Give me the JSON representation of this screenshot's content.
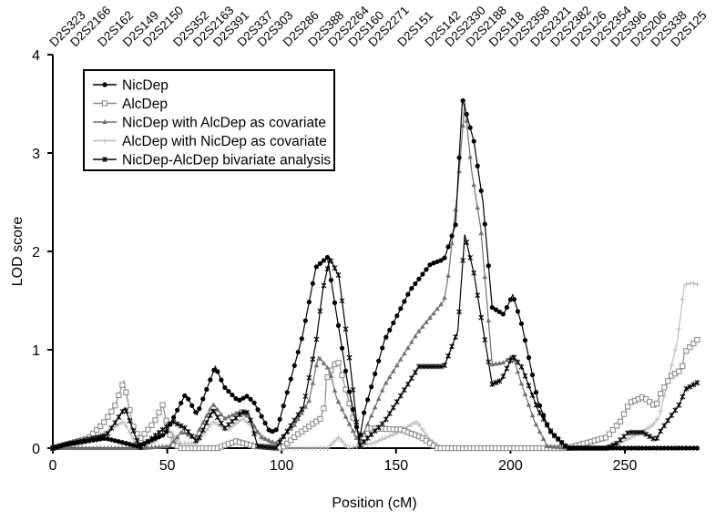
{
  "chart_data": {
    "type": "line",
    "xlabel": "Position (cM)",
    "ylabel": "LOD score",
    "xlim": [
      0,
      290
    ],
    "ylim": [
      0,
      4
    ],
    "x_ticks": [
      "0",
      "50",
      "100",
      "150",
      "200",
      "250"
    ],
    "y_ticks": [
      "0",
      "1",
      "2",
      "3",
      "4"
    ],
    "grid": false,
    "legend_position": "top-left",
    "markers": [
      {
        "name": "D2S323",
        "pos": 0
      },
      {
        "name": "D2S2166",
        "pos": 9
      },
      {
        "name": "D2S162",
        "pos": 21
      },
      {
        "name": "D2S149",
        "pos": 32
      },
      {
        "name": "D2S2150",
        "pos": 40
      },
      {
        "name": "D2S352",
        "pos": 54
      },
      {
        "name": "D2S2163",
        "pos": 59
      },
      {
        "name": "D2S391",
        "pos": 71
      },
      {
        "name": "D2S337",
        "pos": 82
      },
      {
        "name": "D2S303",
        "pos": 90
      },
      {
        "name": "D2S286",
        "pos": 102
      },
      {
        "name": "D2S388",
        "pos": 113
      },
      {
        "name": "D2S2264",
        "pos": 119
      },
      {
        "name": "D2S160",
        "pos": 130
      },
      {
        "name": "D2S2271",
        "pos": 136
      },
      {
        "name": "D2S151",
        "pos": 152
      },
      {
        "name": "D2S142",
        "pos": 164
      },
      {
        "name": "D2S2330",
        "pos": 172
      },
      {
        "name": "D2S2188",
        "pos": 182
      },
      {
        "name": "D2S118",
        "pos": 192
      },
      {
        "name": "D2S2358",
        "pos": 199
      },
      {
        "name": "D2S2321",
        "pos": 211
      },
      {
        "name": "D2S2382",
        "pos": 222
      },
      {
        "name": "D2S126",
        "pos": 230
      },
      {
        "name": "D2S2354",
        "pos": 238
      },
      {
        "name": "D2S396",
        "pos": 255
      },
      {
        "name": "D2S206",
        "pos": 266
      },
      {
        "name": "D2S338",
        "pos": 276
      },
      {
        "name": "D2S125",
        "pos": 284
      }
    ],
    "series": [
      {
        "name": "NicDep",
        "color": "#000000",
        "marker": "circle",
        "points": [
          [
            0,
            0
          ],
          [
            6,
            0.04
          ],
          [
            23,
            0.1
          ],
          [
            37,
            0.02
          ],
          [
            49,
            0.14
          ],
          [
            58,
            0.55
          ],
          [
            63,
            0.34
          ],
          [
            71,
            0.83
          ],
          [
            75,
            0.62
          ],
          [
            81,
            0.48
          ],
          [
            85,
            0.53
          ],
          [
            88,
            0.46
          ],
          [
            95,
            0.16
          ],
          [
            98,
            0.19
          ],
          [
            109,
            1.13
          ],
          [
            115,
            1.84
          ],
          [
            120,
            1.94
          ],
          [
            129,
            0.64
          ],
          [
            134,
            0.08
          ],
          [
            136,
            0.36
          ],
          [
            145,
            1.1
          ],
          [
            156,
            1.6
          ],
          [
            165,
            1.87
          ],
          [
            171,
            1.92
          ],
          [
            176,
            2.27
          ],
          [
            179,
            3.55
          ],
          [
            184,
            3.12
          ],
          [
            188,
            2.49
          ],
          [
            192,
            1.43
          ],
          [
            197,
            1.36
          ],
          [
            201,
            1.56
          ],
          [
            205,
            1.25
          ],
          [
            212,
            0.48
          ],
          [
            217,
            0.18
          ],
          [
            225,
            0
          ],
          [
            282,
            0
          ]
        ]
      },
      {
        "name": "AlcDep",
        "color": "#8c8c8c",
        "marker": "square",
        "points": [
          [
            0,
            0
          ],
          [
            15.5,
            0.1
          ],
          [
            22,
            0.25
          ],
          [
            27,
            0.42
          ],
          [
            31,
            0.68
          ],
          [
            35,
            0.23
          ],
          [
            38,
            0.09
          ],
          [
            44.5,
            0.27
          ],
          [
            48,
            0.44
          ],
          [
            51,
            0.14
          ],
          [
            55,
            0
          ],
          [
            72,
            0
          ],
          [
            80,
            0.07
          ],
          [
            88,
            0.02
          ],
          [
            100,
            0
          ],
          [
            107,
            0.14
          ],
          [
            117,
            0.3
          ],
          [
            119,
            0.45
          ],
          [
            119.5,
            0.7
          ],
          [
            123,
            0.85
          ],
          [
            125,
            0.87
          ],
          [
            127.5,
            0.64
          ],
          [
            131,
            0.33
          ],
          [
            134,
            0.02
          ],
          [
            139,
            0.2
          ],
          [
            152,
            0.19
          ],
          [
            161,
            0.11
          ],
          [
            168,
            0
          ],
          [
            225,
            0
          ],
          [
            228,
            0.02
          ],
          [
            242,
            0.11
          ],
          [
            248,
            0.27
          ],
          [
            252,
            0.46
          ],
          [
            258,
            0.52
          ],
          [
            263.5,
            0.42
          ],
          [
            265.5,
            0.55
          ],
          [
            270,
            0.73
          ],
          [
            275,
            0.8
          ],
          [
            276,
            0.97
          ],
          [
            282,
            1.11
          ]
        ]
      },
      {
        "name": "NicDep with AlcDep as covariate",
        "color": "#707070",
        "marker": "triangle",
        "points": [
          [
            0,
            0
          ],
          [
            40,
            0
          ],
          [
            51,
            0.02
          ],
          [
            56.5,
            0.17
          ],
          [
            62,
            0.1
          ],
          [
            70,
            0.45
          ],
          [
            75,
            0.3
          ],
          [
            81.5,
            0.37
          ],
          [
            85.5,
            0.32
          ],
          [
            91,
            0.11
          ],
          [
            97.5,
            0.05
          ],
          [
            105.5,
            0.23
          ],
          [
            112,
            0.48
          ],
          [
            116,
            0.93
          ],
          [
            121,
            0.79
          ],
          [
            124,
            0.51
          ],
          [
            129,
            0.27
          ],
          [
            134,
            0.05
          ],
          [
            145,
            0.64
          ],
          [
            159,
            1.16
          ],
          [
            171,
            1.5
          ],
          [
            173,
            1.78
          ],
          [
            177,
            2.64
          ],
          [
            180,
            3.51
          ],
          [
            183,
            2.82
          ],
          [
            187,
            2.24
          ],
          [
            192,
            0.85
          ],
          [
            197,
            0.87
          ],
          [
            201,
            0.94
          ],
          [
            205,
            0.64
          ],
          [
            210.5,
            0.27
          ],
          [
            216,
            0.02
          ],
          [
            225,
            0
          ],
          [
            282,
            0
          ]
        ]
      },
      {
        "name": "AlcDep with NicDep as covariate",
        "color": "#bdbdbd",
        "marker": "plus",
        "points": [
          [
            0,
            0
          ],
          [
            10,
            0.02
          ],
          [
            17,
            0.08
          ],
          [
            31,
            0.27
          ],
          [
            37,
            0.02
          ],
          [
            44,
            0.05
          ],
          [
            50,
            0.2
          ],
          [
            56,
            0.05
          ],
          [
            63,
            0.05
          ],
          [
            70,
            0.27
          ],
          [
            76,
            0.18
          ],
          [
            83,
            0.3
          ],
          [
            88,
            0.2
          ],
          [
            95,
            0.05
          ],
          [
            100,
            0
          ],
          [
            120,
            0
          ],
          [
            125,
            0.11
          ],
          [
            129,
            0
          ],
          [
            140,
            0.05
          ],
          [
            150,
            0.15
          ],
          [
            159,
            0.27
          ],
          [
            165,
            0.08
          ],
          [
            170,
            0
          ],
          [
            240,
            0
          ],
          [
            245,
            0.02
          ],
          [
            255.5,
            0.14
          ],
          [
            262,
            0.23
          ],
          [
            265,
            0.32
          ],
          [
            269,
            0.7
          ],
          [
            273,
            1.1
          ],
          [
            276,
            1.66
          ],
          [
            279.5,
            1.68
          ],
          [
            282,
            1.66
          ]
        ]
      },
      {
        "name": "NicDep-AlcDep bivariate analysis",
        "color": "#000000",
        "marker": "star",
        "points": [
          [
            0,
            0
          ],
          [
            6,
            0.04
          ],
          [
            23.5,
            0.13
          ],
          [
            31.5,
            0.41
          ],
          [
            38,
            0
          ],
          [
            47,
            0.17
          ],
          [
            52.5,
            0.27
          ],
          [
            58,
            0.2
          ],
          [
            63,
            0.06
          ],
          [
            70,
            0.39
          ],
          [
            75,
            0.2
          ],
          [
            83,
            0.37
          ],
          [
            85.5,
            0.36
          ],
          [
            89.5,
            0.02
          ],
          [
            97.5,
            0
          ],
          [
            109.5,
            0.42
          ],
          [
            115,
            1.07
          ],
          [
            118,
            1.61
          ],
          [
            121,
            1.93
          ],
          [
            125,
            1.75
          ],
          [
            129.5,
            0.94
          ],
          [
            134,
            0.02
          ],
          [
            145,
            0.27
          ],
          [
            160,
            0.83
          ],
          [
            171,
            0.83
          ],
          [
            177,
            1.19
          ],
          [
            180,
            2.17
          ],
          [
            184,
            1.78
          ],
          [
            192,
            0.65
          ],
          [
            196,
            0.69
          ],
          [
            201,
            0.94
          ],
          [
            205,
            0.82
          ],
          [
            212,
            0.39
          ],
          [
            218.5,
            0.14
          ],
          [
            225,
            0
          ],
          [
            242,
            0
          ],
          [
            246.5,
            0.05
          ],
          [
            251.5,
            0.16
          ],
          [
            258,
            0.16
          ],
          [
            263.5,
            0.08
          ],
          [
            266,
            0.19
          ],
          [
            274,
            0.45
          ],
          [
            276.5,
            0.6
          ],
          [
            282,
            0.67
          ]
        ]
      }
    ]
  }
}
